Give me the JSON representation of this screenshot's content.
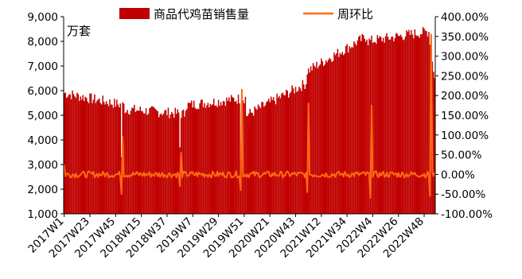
{
  "chart_data": {
    "type": "bar",
    "unit_label": "万套",
    "colors": {
      "bar": "#c00000",
      "line": "#ff6a13"
    },
    "legend": {
      "position": "top",
      "items": [
        {
          "name": "商品代鸡苗销售量",
          "marker": "bar"
        },
        {
          "name": "周环比",
          "marker": "line"
        }
      ]
    },
    "y_left": {
      "range": [
        1000,
        9000
      ],
      "ticks": [
        "1,000",
        "2,000",
        "3,000",
        "4,000",
        "5,000",
        "6,000",
        "7,000",
        "8,000",
        "9,000"
      ]
    },
    "y_right": {
      "range": [
        -100,
        400
      ],
      "ticks": [
        "-100.00%",
        "-50.00%",
        "0.00%",
        "50.00%",
        "100.00%",
        "150.00%",
        "200.00%",
        "250.00%",
        "300.00%",
        "350.00%",
        "400.00%"
      ]
    },
    "x_tick_labels": [
      "2017W1",
      "2017W23",
      "2017W45",
      "2018W15",
      "2018W37",
      "2019W7",
      "2019W29",
      "2019W51",
      "2020W21",
      "2020W43",
      "2021W12",
      "2021W34",
      "2022W4",
      "2022W26",
      "2022W48"
    ],
    "n_weeks": 318,
    "series": [
      {
        "name": "商品代鸡苗销售量",
        "axis": "left",
        "type": "bar",
        "segments": [
          {
            "weeks": [
              1,
              52
            ],
            "level": [
              5900,
              5400
            ],
            "holiday_week": 50,
            "holiday_value": 3300
          },
          {
            "weeks": [
              53,
              104
            ],
            "level": [
              5250,
              5050
            ],
            "holiday_week": 100,
            "holiday_value": 3700
          },
          {
            "weeks": [
              105,
              156
            ],
            "level": [
              5400,
              5700
            ],
            "holiday_week": 152,
            "holiday_value": 3200
          },
          {
            "weeks": [
              157,
              208
            ],
            "level": [
              5000,
              6300
            ],
            "holiday_week": 209,
            "holiday_value": 3800
          },
          {
            "weeks": [
              209,
              260
            ],
            "level": [
              6800,
              8200
            ],
            "holiday_week": 263,
            "holiday_value": 2000
          },
          {
            "weeks": [
              261,
              312
            ],
            "level": [
              8000,
              8400
            ],
            "holiday_week": 314,
            "holiday_value": 2200
          },
          {
            "weeks": [
              313,
              318
            ],
            "level": [
              8400,
              6500
            ]
          }
        ]
      },
      {
        "name": "周环比",
        "axis": "right",
        "type": "line",
        "baseline": 0,
        "spikes": [
          {
            "week": 1,
            "value": 25
          },
          {
            "week": 50,
            "value": -50
          },
          {
            "week": 51,
            "value": 95
          },
          {
            "week": 100,
            "value": -30
          },
          {
            "week": 101,
            "value": 55
          },
          {
            "week": 152,
            "value": -40
          },
          {
            "week": 153,
            "value": 215
          },
          {
            "week": 209,
            "value": -45
          },
          {
            "week": 210,
            "value": 180
          },
          {
            "week": 263,
            "value": -60
          },
          {
            "week": 264,
            "value": 175
          },
          {
            "week": 314,
            "value": -55
          },
          {
            "week": 315,
            "value": 355
          },
          {
            "week": 318,
            "value": 5
          }
        ]
      }
    ]
  }
}
